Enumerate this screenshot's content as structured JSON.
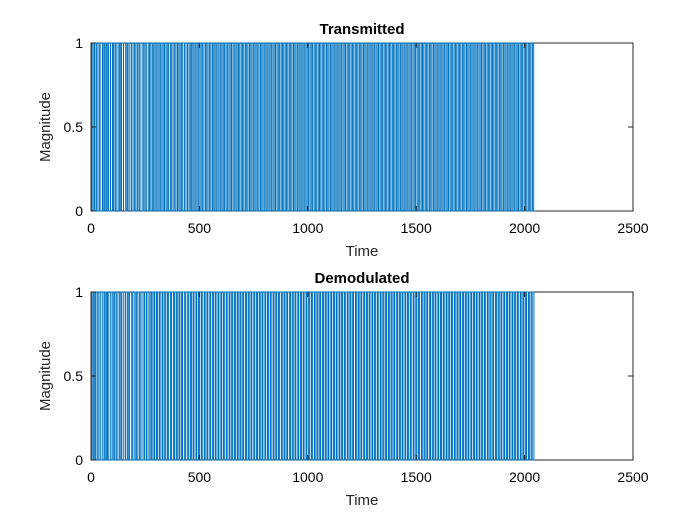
{
  "chart_data": [
    {
      "type": "line",
      "title": "Transmitted",
      "xlabel": "Time",
      "ylabel": "Magnitude",
      "xlim": [
        0,
        2500
      ],
      "ylim": [
        0,
        1
      ],
      "xticks": [
        0,
        500,
        1000,
        1500,
        2000,
        2500
      ],
      "yticks": [
        0,
        0.5,
        1
      ],
      "xtick_labels": [
        "0",
        "500",
        "1000",
        "1500",
        "2000",
        "2500"
      ],
      "ytick_labels": [
        "0",
        "0.5",
        "1"
      ],
      "grid": false,
      "series": [
        {
          "color": "#0072BD",
          "signal": "binary",
          "x_start": 1,
          "x_end": 2048,
          "transition_times": [
            4,
            10,
            16,
            23,
            28,
            37,
            42,
            53,
            59,
            64,
            70,
            75,
            81,
            90,
            99,
            104,
            111,
            116,
            125,
            131,
            137,
            141,
            150,
            160,
            166,
            171,
            179,
            187,
            194,
            201,
            207,
            214,
            221,
            226,
            236,
            243,
            249,
            255,
            264,
            270,
            276,
            283,
            289,
            295,
            301,
            308,
            314,
            320,
            327,
            333,
            339,
            346,
            352,
            358,
            366,
            372,
            379,
            386,
            392,
            399,
            405,
            411,
            417,
            423,
            431,
            438,
            445,
            452,
            458,
            464,
            470,
            476,
            483,
            489,
            495,
            502,
            508,
            514,
            521,
            528,
            534,
            540,
            547,
            553,
            560,
            566,
            572,
            578,
            585,
            591,
            598,
            604,
            610,
            616,
            623,
            629,
            636,
            642,
            648,
            655,
            661,
            668,
            674,
            680,
            686,
            693,
            699,
            705,
            712,
            718,
            724,
            731,
            737,
            743,
            750,
            756,
            762,
            769,
            775,
            782,
            788,
            794,
            801,
            807,
            813,
            820,
            826,
            832,
            839,
            845,
            851,
            858,
            864,
            870,
            877,
            883,
            889,
            896,
            902,
            908,
            915,
            921,
            927,
            934,
            940,
            946,
            953,
            959,
            965,
            972,
            978,
            984,
            991,
            997,
            1003,
            1010,
            1016,
            1022,
            1029,
            1035,
            1041,
            1048,
            1054,
            1060,
            1067,
            1073,
            1079,
            1086,
            1092,
            1098,
            1105,
            1111,
            1117,
            1124,
            1130,
            1136,
            1143,
            1149,
            1155,
            1162,
            1168,
            1174,
            1181,
            1187,
            1193,
            1200,
            1206,
            1212,
            1219,
            1225,
            1231,
            1238,
            1244,
            1250,
            1257,
            1263,
            1269,
            1276,
            1282,
            1288,
            1295,
            1301,
            1307,
            1314,
            1320,
            1326,
            1333,
            1339,
            1345,
            1352,
            1358,
            1364,
            1371,
            1377,
            1383,
            1390,
            1396,
            1402,
            1409,
            1415,
            1421,
            1428,
            1434,
            1440,
            1447,
            1453,
            1459,
            1466,
            1472,
            1478,
            1485,
            1491,
            1497,
            1504,
            1510,
            1516,
            1523,
            1529,
            1535,
            1542,
            1548,
            1554,
            1561,
            1567,
            1573,
            1580,
            1586,
            1592,
            1599,
            1605,
            1611,
            1618,
            1624,
            1630,
            1637,
            1643,
            1649,
            1656,
            1662,
            1668,
            1675,
            1681,
            1687,
            1694,
            1700,
            1706,
            1713,
            1719,
            1725,
            1732,
            1738,
            1744,
            1751,
            1757,
            1763,
            1770,
            1776,
            1782,
            1789,
            1795,
            1801,
            1808,
            1814,
            1820,
            1827,
            1833,
            1839,
            1846,
            1852,
            1858,
            1865,
            1871,
            1877,
            1884,
            1890,
            1896,
            1903,
            1909,
            1915,
            1922,
            1928,
            1934,
            1941,
            1947,
            1953,
            1960,
            1966,
            1972,
            1979,
            1985,
            1991,
            1998,
            2004,
            2010,
            2017,
            2023,
            2029,
            2036,
            2042
          ]
        }
      ]
    },
    {
      "type": "line",
      "title": "Demodulated",
      "xlabel": "Time",
      "ylabel": "Magnitude",
      "xlim": [
        0,
        2500
      ],
      "ylim": [
        0,
        1
      ],
      "xticks": [
        0,
        500,
        1000,
        1500,
        2000,
        2500
      ],
      "yticks": [
        0,
        0.5,
        1
      ],
      "xtick_labels": [
        "0",
        "500",
        "1000",
        "1500",
        "2000",
        "2500"
      ],
      "ytick_labels": [
        "0",
        "0.5",
        "1"
      ],
      "grid": false,
      "series": [
        {
          "color": "#0072BD",
          "signal": "binary",
          "x_start": 1,
          "x_end": 2048,
          "transition_times": [
            5,
            11,
            17,
            22,
            29,
            36,
            43,
            52,
            60,
            65,
            71,
            76,
            82,
            91,
            98,
            105,
            110,
            117,
            124,
            132,
            138,
            142,
            151,
            159,
            167,
            172,
            178,
            188,
            193,
            202,
            208,
            213,
            222,
            227,
            235,
            244,
            248,
            256,
            263,
            271,
            277,
            282,
            290,
            294,
            302,
            307,
            315,
            319,
            328,
            332,
            340,
            345,
            353,
            357,
            367,
            371,
            380,
            385,
            393,
            398,
            406,
            410,
            418,
            422,
            432,
            437,
            446,
            451,
            459,
            463,
            471,
            475,
            484,
            488,
            496,
            501,
            509,
            513,
            522,
            527,
            535,
            539,
            548,
            552,
            561,
            565,
            573,
            577,
            586,
            590,
            599,
            603,
            611,
            615,
            624,
            628,
            637,
            641,
            649,
            654,
            662,
            667,
            675,
            679,
            687,
            692,
            700,
            704,
            713,
            717,
            725,
            730,
            738,
            742,
            751,
            755,
            763,
            768,
            776,
            781,
            789,
            793,
            802,
            806,
            814,
            819,
            827,
            831,
            840,
            844,
            852,
            857,
            865,
            869,
            878,
            882,
            890,
            895,
            903,
            907,
            916,
            920,
            928,
            933,
            941,
            945,
            954,
            958,
            966,
            971,
            979,
            983,
            992,
            996,
            1004,
            1009,
            1017,
            1021,
            1030,
            1034,
            1042,
            1047,
            1055,
            1059,
            1068,
            1072,
            1080,
            1085,
            1093,
            1097,
            1106,
            1110,
            1118,
            1123,
            1131,
            1135,
            1144,
            1148,
            1156,
            1161,
            1169,
            1173,
            1182,
            1186,
            1194,
            1199,
            1207,
            1211,
            1220,
            1224,
            1232,
            1237,
            1245,
            1249,
            1258,
            1262,
            1270,
            1275,
            1283,
            1287,
            1296,
            1300,
            1308,
            1313,
            1321,
            1325,
            1334,
            1338,
            1346,
            1351,
            1359,
            1363,
            1372,
            1376,
            1384,
            1389,
            1397,
            1401,
            1410,
            1414,
            1422,
            1427,
            1435,
            1439,
            1448,
            1452,
            1460,
            1465,
            1473,
            1477,
            1486,
            1490,
            1498,
            1503,
            1511,
            1515,
            1524,
            1528,
            1536,
            1541,
            1549,
            1553,
            1562,
            1566,
            1574,
            1579,
            1587,
            1591,
            1600,
            1604,
            1612,
            1617,
            1625,
            1629,
            1638,
            1642,
            1650,
            1655,
            1663,
            1667,
            1676,
            1680,
            1688,
            1693,
            1701,
            1705,
            1714,
            1718,
            1726,
            1731,
            1739,
            1743,
            1752,
            1756,
            1764,
            1769,
            1777,
            1781,
            1790,
            1794,
            1802,
            1807,
            1815,
            1819,
            1828,
            1832,
            1840,
            1845,
            1853,
            1857,
            1866,
            1870,
            1878,
            1883,
            1891,
            1895,
            1904,
            1908,
            1916,
            1921,
            1929,
            1933,
            1942,
            1946,
            1954,
            1959,
            1967,
            1971,
            1980,
            1984,
            1992,
            1997,
            2005,
            2009,
            2018,
            2022,
            2030,
            2035,
            2043
          ]
        }
      ]
    }
  ]
}
